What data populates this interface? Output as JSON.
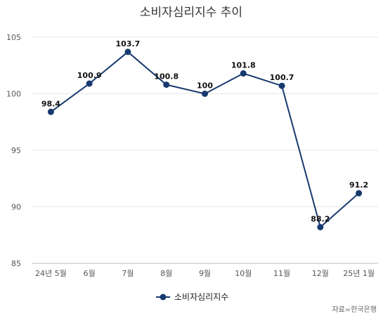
{
  "chart_data": {
    "type": "line",
    "title": "소비자심리지수 추이",
    "categories": [
      "24년 5월",
      "6월",
      "7월",
      "8월",
      "9월",
      "10월",
      "11월",
      "12월",
      "25년 1월"
    ],
    "series": [
      {
        "name": "소비자심리지수",
        "values": [
          98.4,
          100.9,
          103.7,
          100.8,
          100,
          101.8,
          100.7,
          88.2,
          91.2
        ],
        "labels": [
          "98.4",
          "100.9",
          "103.7",
          "100.8",
          "100",
          "101.8",
          "100.7",
          "88.2",
          "91.2"
        ],
        "color": "#173a6e"
      }
    ],
    "ylim": [
      85,
      105
    ],
    "yticks": [
      85,
      90,
      95,
      100,
      105
    ],
    "grid": true,
    "legend": "bottom-center",
    "source": "자료=한국은행"
  }
}
